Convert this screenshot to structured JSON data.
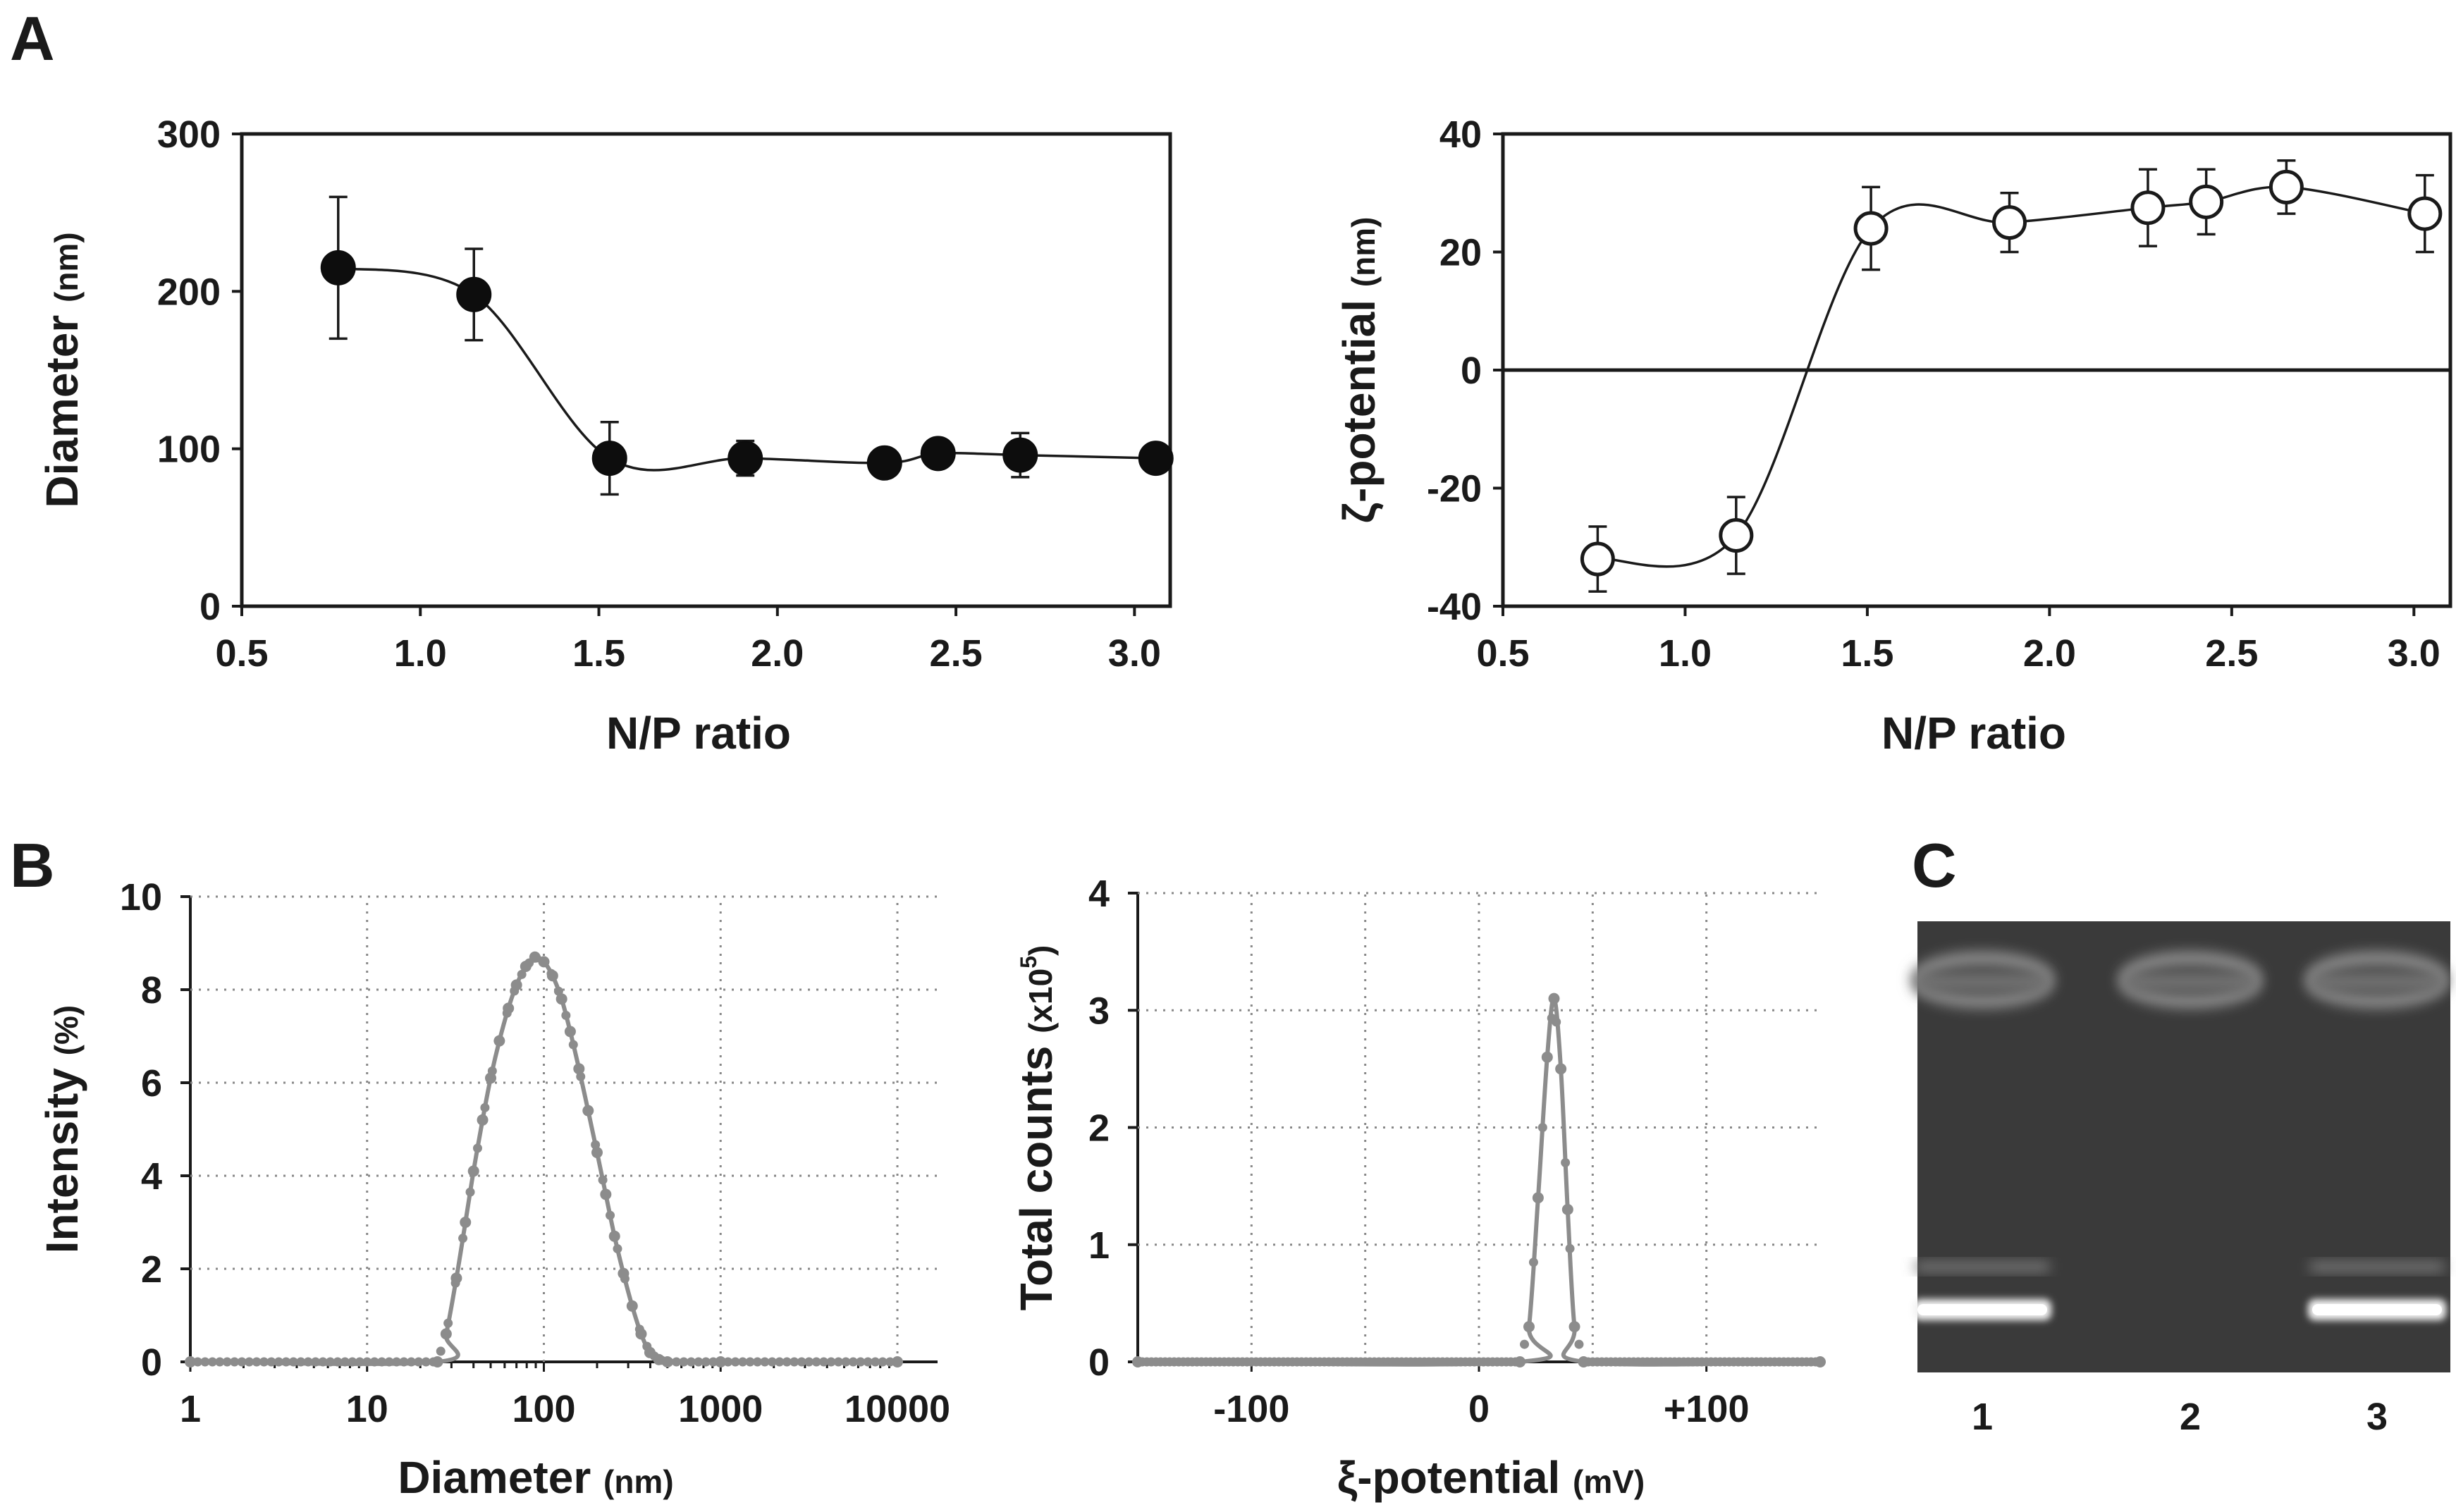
{
  "panels": {
    "A": "A",
    "B": "B",
    "C": "C"
  },
  "chart_data": [
    {
      "id": "a1",
      "type": "line",
      "xlabel": "N/P ratio",
      "ylabel": "Diameter",
      "ylabel_unit": "(nm)",
      "xlim": [
        0.5,
        3.1
      ],
      "ylim": [
        0,
        300
      ],
      "xticks": [
        "0.5",
        "1.0",
        "1.5",
        "2.0",
        "2.5",
        "3.0"
      ],
      "yticks": [
        "0",
        "100",
        "200",
        "300"
      ],
      "grid": false,
      "marker": "filled-circle",
      "series": [
        {
          "x": [
            0.77,
            1.15,
            1.53,
            1.91,
            2.3,
            2.45,
            2.68,
            3.06
          ],
          "y": [
            215,
            198,
            94,
            94,
            91,
            97,
            96,
            94
          ],
          "error": [
            45,
            29,
            23,
            11,
            8,
            8,
            14,
            8
          ]
        }
      ],
      "colors": {
        "marker": "#0d0d0d",
        "line": "#1a1a1a"
      }
    },
    {
      "id": "a2",
      "type": "line",
      "xlabel": "N/P ratio",
      "ylabel": "ζ-potential",
      "ylabel_unit": "(nm)",
      "xlim": [
        0.5,
        3.1
      ],
      "ylim": [
        -40,
        40
      ],
      "xticks": [
        "0.5",
        "1.0",
        "1.5",
        "2.0",
        "2.5",
        "3.0"
      ],
      "yticks": [
        "-40",
        "-20",
        "0",
        "20",
        "40"
      ],
      "grid": false,
      "zero_line": true,
      "marker": "open-circle",
      "series": [
        {
          "x": [
            0.76,
            1.14,
            1.51,
            1.89,
            2.27,
            2.43,
            2.65,
            3.03
          ],
          "y": [
            -32,
            -28,
            24,
            25,
            27.5,
            28.5,
            31,
            26.5
          ],
          "error": [
            5.5,
            6.5,
            7,
            5,
            6.5,
            5.5,
            4.5,
            6.5
          ]
        }
      ],
      "colors": {
        "marker_fill": "#ffffff",
        "marker_stroke": "#1a1a1a",
        "line": "#1a1a1a"
      }
    },
    {
      "id": "b1",
      "type": "line",
      "xlabel": "Diameter",
      "xlabel_unit": "(nm)",
      "ylabel": "Intensity",
      "ylabel_unit": "(%)",
      "xscale": "log",
      "xlim": [
        1,
        10000
      ],
      "ylim": [
        0,
        10
      ],
      "xticks": [
        "1",
        "10",
        "100",
        "1000",
        "10000"
      ],
      "yticks": [
        "0",
        "2",
        "4",
        "6",
        "8",
        "10"
      ],
      "grid": true,
      "series": [
        {
          "x": [
            1,
            25,
            28,
            32,
            36,
            40,
            45,
            50,
            56,
            63,
            70,
            79,
            89,
            100,
            112,
            126,
            141,
            158,
            178,
            200,
            224,
            251,
            282,
            316,
            355,
            398,
            447,
            500,
            1000,
            10000
          ],
          "y": [
            0,
            0,
            0.6,
            1.8,
            3.0,
            4.1,
            5.2,
            6.1,
            6.9,
            7.6,
            8.1,
            8.5,
            8.7,
            8.6,
            8.3,
            7.8,
            7.1,
            6.3,
            5.4,
            4.5,
            3.6,
            2.7,
            1.9,
            1.2,
            0.6,
            0.2,
            0.05,
            0,
            0,
            0
          ]
        }
      ],
      "colors": {
        "line": "#8c8c8c",
        "marker": "#8c8c8c",
        "grid": "#888888"
      }
    },
    {
      "id": "b2",
      "type": "line",
      "xlabel": "ξ-potential",
      "xlabel_unit": "(mV)",
      "ylabel": "Total counts",
      "ylabel_unit": "(x10",
      "ylabel_unit_exp": "5",
      "ylabel_unit_close": ")",
      "xlim": [
        -150,
        150
      ],
      "ylim": [
        0,
        4
      ],
      "xticks": [
        "-100",
        "0",
        "+100"
      ],
      "yticks": [
        "0",
        "1",
        "2",
        "3",
        "4"
      ],
      "grid": true,
      "series": [
        {
          "x": [
            -150,
            18,
            22,
            26,
            30,
            33,
            36,
            39,
            42,
            46,
            150
          ],
          "y": [
            0,
            0,
            0.3,
            1.4,
            2.6,
            3.1,
            2.5,
            1.3,
            0.3,
            0,
            0
          ]
        }
      ],
      "colors": {
        "line": "#8c8c8c",
        "marker": "#8c8c8c",
        "grid": "#888888"
      }
    }
  ],
  "gel": {
    "lanes": [
      "1",
      "2",
      "3"
    ],
    "bands": {
      "wells": [
        true,
        true,
        true
      ],
      "lower": [
        true,
        false,
        true
      ]
    },
    "colors": {
      "background": "#3a3a3a",
      "band": "#f2f2f2",
      "well": "#8e8e8e"
    }
  }
}
